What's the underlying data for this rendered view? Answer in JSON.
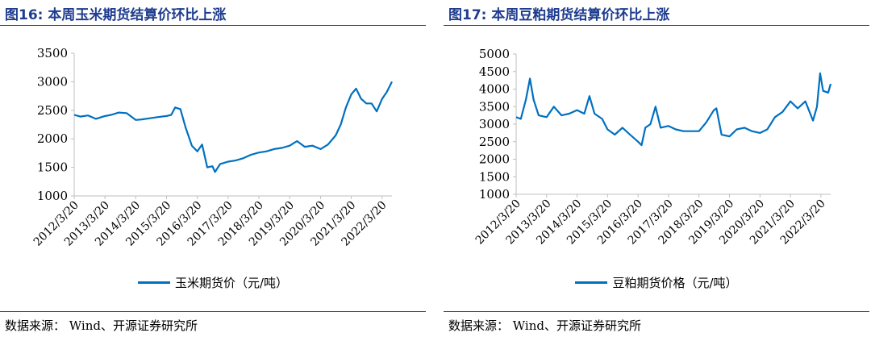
{
  "left": {
    "title": "图16:  本周玉米期货结算价环比上涨",
    "legend": "玉米期货价（元/吨）",
    "source": "数据来源：  Wind、开源证券研究所"
  },
  "right": {
    "title": "图17:  本周豆粕期货结算价环比上涨",
    "legend": "豆粕期货价格（元/吨）",
    "source": "数据来源：  Wind、开源证券研究所"
  },
  "chart_data": [
    {
      "type": "line",
      "title": "",
      "xlabel": "",
      "ylabel": "",
      "x_tick_labels": [
        "2012/3/20",
        "2013/3/20",
        "2014/3/20",
        "2015/3/20",
        "2016/3/20",
        "2017/3/20",
        "2018/3/20",
        "2019/3/20",
        "2020/3/20",
        "2021/3/20",
        "2022/3/20"
      ],
      "y_ticks": [
        1000,
        1500,
        2000,
        2500,
        3000,
        3500
      ],
      "ylim": [
        1000,
        3500
      ],
      "xlim": [
        "2012-03-20",
        "2022-07-15"
      ],
      "grid": false,
      "legend_placement": "bottom",
      "series": [
        {
          "name": "玉米期货价（元/吨）",
          "color": "#0070c0",
          "x": [
            "2012-03-20",
            "2012-06-01",
            "2012-09-01",
            "2012-12-01",
            "2013-03-20",
            "2013-06-01",
            "2013-09-01",
            "2013-12-01",
            "2014-03-20",
            "2014-06-01",
            "2014-09-01",
            "2014-12-01",
            "2015-03-20",
            "2015-05-15",
            "2015-07-01",
            "2015-09-01",
            "2015-11-01",
            "2016-01-15",
            "2016-03-20",
            "2016-05-15",
            "2016-07-15",
            "2016-09-15",
            "2016-10-15",
            "2016-12-15",
            "2017-03-20",
            "2017-06-15",
            "2017-09-15",
            "2017-12-15",
            "2018-03-20",
            "2018-06-15",
            "2018-09-15",
            "2018-12-15",
            "2019-03-20",
            "2019-06-15",
            "2019-09-15",
            "2019-12-15",
            "2020-03-20",
            "2020-06-15",
            "2020-09-15",
            "2020-11-15",
            "2021-01-15",
            "2021-03-20",
            "2021-05-15",
            "2021-07-15",
            "2021-09-15",
            "2021-11-15",
            "2022-01-15",
            "2022-03-20",
            "2022-05-15",
            "2022-07-15"
          ],
          "values": [
            2420,
            2390,
            2410,
            2350,
            2400,
            2420,
            2460,
            2450,
            2330,
            2340,
            2360,
            2380,
            2400,
            2420,
            2550,
            2520,
            2200,
            1880,
            1780,
            1900,
            1500,
            1520,
            1420,
            1560,
            1600,
            1620,
            1660,
            1720,
            1760,
            1780,
            1820,
            1840,
            1880,
            1960,
            1860,
            1880,
            1820,
            1900,
            2060,
            2250,
            2550,
            2780,
            2880,
            2700,
            2620,
            2620,
            2480,
            2700,
            2820,
            3000
          ]
        }
      ]
    },
    {
      "type": "line",
      "title": "",
      "xlabel": "",
      "ylabel": "",
      "x_tick_labels": [
        "2012/3/20",
        "2013/3/20",
        "2014/3/20",
        "2015/3/20",
        "2016/3/20",
        "2017/3/20",
        "2018/3/20",
        "2019/3/20",
        "2020/3/20",
        "2021/3/20",
        "2022/3/20"
      ],
      "y_ticks": [
        1000,
        1500,
        2000,
        2500,
        3000,
        3500,
        4000,
        4500,
        5000
      ],
      "ylim": [
        1000,
        5000
      ],
      "xlim": [
        "2012-03-20",
        "2022-07-15"
      ],
      "grid": false,
      "legend_placement": "bottom",
      "series": [
        {
          "name": "豆粕期货价格（元/吨）",
          "color": "#0070c0",
          "x": [
            "2012-03-20",
            "2012-05-15",
            "2012-07-15",
            "2012-09-01",
            "2012-10-15",
            "2012-12-15",
            "2013-03-20",
            "2013-06-15",
            "2013-09-15",
            "2013-12-15",
            "2014-03-20",
            "2014-06-15",
            "2014-08-15",
            "2014-10-15",
            "2015-01-15",
            "2015-03-20",
            "2015-06-15",
            "2015-09-15",
            "2015-12-15",
            "2016-03-20",
            "2016-05-01",
            "2016-06-15",
            "2016-08-15",
            "2016-10-15",
            "2016-12-15",
            "2017-03-20",
            "2017-06-15",
            "2017-09-15",
            "2017-12-15",
            "2018-03-20",
            "2018-06-15",
            "2018-09-15",
            "2018-10-15",
            "2018-12-15",
            "2019-03-20",
            "2019-06-15",
            "2019-09-15",
            "2019-12-15",
            "2020-03-20",
            "2020-06-15",
            "2020-09-15",
            "2020-12-15",
            "2021-03-20",
            "2021-06-15",
            "2021-09-15",
            "2021-12-15",
            "2022-02-01",
            "2022-03-10",
            "2022-04-15",
            "2022-06-15",
            "2022-07-15"
          ],
          "values": [
            3200,
            3150,
            3700,
            4300,
            3700,
            3250,
            3200,
            3500,
            3250,
            3300,
            3400,
            3300,
            3800,
            3300,
            3150,
            2850,
            2700,
            2900,
            2700,
            2500,
            2400,
            2900,
            3000,
            3500,
            2900,
            2950,
            2850,
            2800,
            2800,
            2800,
            3050,
            3400,
            3450,
            2700,
            2650,
            2850,
            2900,
            2800,
            2750,
            2850,
            3200,
            3350,
            3650,
            3450,
            3650,
            3100,
            3500,
            4450,
            3950,
            3900,
            4150
          ]
        }
      ]
    }
  ]
}
